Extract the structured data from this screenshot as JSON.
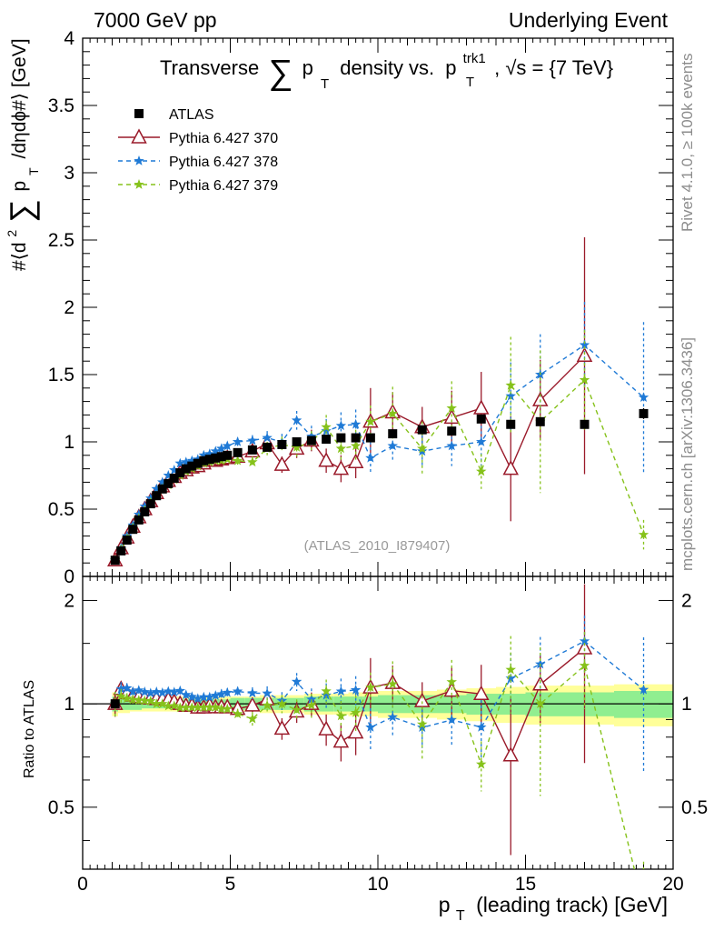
{
  "header": {
    "left": "7000 GeV pp",
    "right": "Underlying Event"
  },
  "side_labels": {
    "rivet": "Rivet 4.1.0, ≥ 100k events",
    "mcplots": "mcplots.cern.ch [arXiv:1306.3436]"
  },
  "title": {
    "text_a": "Transverse",
    "sum_symbol": "∑",
    "p": "p",
    "t_sub": "T",
    "text_b": "density vs.",
    "trk_sup": "trk1",
    "text_c": ", √s = {7 TeV}"
  },
  "ylabel_main": {
    "a": "#⟨d",
    "sup2": "2",
    "sum": "∑",
    "p": "p",
    "t": "T",
    "b": "/dηdϕ#⟩ [GeV]"
  },
  "ylabel_ratio": "Ratio to ATLAS",
  "xlabel": {
    "p": "p",
    "t": "T",
    "rest": "(leading track) [GeV]"
  },
  "watermark": "(ATLAS_2010_I879407)",
  "colors": {
    "atlas": "#000000",
    "p370": "#9a1a2a",
    "p378": "#1f7ad6",
    "p379": "#86c21b",
    "band_yellow": "#ffff99",
    "band_green": "#90ee90"
  },
  "chart_data": {
    "type": "scatter",
    "title": "Transverse ∑ p_T density vs. p_T^trk1, √s = {7 TeV}",
    "xlabel": "p_T (leading track) [GeV]",
    "ylabel": "#⟨d² ∑ p_T /dηdϕ#⟩ [GeV]",
    "xlim": [
      0,
      20
    ],
    "ylim": [
      0,
      4
    ],
    "ratio_ylim": [
      0.33,
      2.35
    ],
    "x_ticks": [
      "0",
      "5",
      "10",
      "15",
      "20"
    ],
    "y_ticks": [
      "0",
      "0.5",
      "1",
      "1.5",
      "2",
      "2.5",
      "3",
      "3.5",
      "4"
    ],
    "ratio_ticks": [
      "0.5",
      "1",
      "2"
    ],
    "legend_position": "top-left",
    "x": [
      1.1,
      1.3,
      1.5,
      1.7,
      1.9,
      2.1,
      2.3,
      2.5,
      2.7,
      2.9,
      3.1,
      3.3,
      3.5,
      3.7,
      3.9,
      4.1,
      4.3,
      4.5,
      4.7,
      4.9,
      5.25,
      5.75,
      6.25,
      6.75,
      7.25,
      7.75,
      8.25,
      8.75,
      9.25,
      9.75,
      10.5,
      11.5,
      12.5,
      13.5,
      14.5,
      15.5,
      17.0,
      19.0
    ],
    "bin_lo": [
      1.0,
      1.2,
      1.4,
      1.6,
      1.8,
      2.0,
      2.2,
      2.4,
      2.6,
      2.8,
      3.0,
      3.2,
      3.4,
      3.6,
      3.8,
      4.0,
      4.2,
      4.4,
      4.6,
      4.8,
      5.0,
      5.5,
      6.0,
      6.5,
      7.0,
      7.5,
      8.0,
      8.5,
      9.0,
      9.5,
      10.0,
      11.0,
      12.0,
      13.0,
      14.0,
      15.0,
      16.0,
      18.0
    ],
    "bin_hi": [
      1.2,
      1.4,
      1.6,
      1.8,
      2.0,
      2.2,
      2.4,
      2.6,
      2.8,
      3.0,
      3.2,
      3.4,
      3.6,
      3.8,
      4.0,
      4.2,
      4.4,
      4.6,
      4.8,
      5.0,
      5.5,
      6.0,
      6.5,
      7.0,
      7.5,
      8.0,
      8.5,
      9.0,
      9.5,
      10.0,
      11.0,
      12.0,
      13.0,
      14.0,
      15.0,
      16.0,
      18.0,
      20.0
    ],
    "band_green": [
      0.05,
      0.04,
      0.04,
      0.04,
      0.04,
      0.03,
      0.03,
      0.03,
      0.03,
      0.03,
      0.03,
      0.03,
      0.03,
      0.03,
      0.03,
      0.03,
      0.03,
      0.03,
      0.03,
      0.03,
      0.04,
      0.04,
      0.04,
      0.04,
      0.04,
      0.05,
      0.05,
      0.05,
      0.05,
      0.05,
      0.06,
      0.06,
      0.06,
      0.07,
      0.07,
      0.08,
      0.08,
      0.09
    ],
    "band_yellow": [
      0.08,
      0.06,
      0.06,
      0.05,
      0.05,
      0.05,
      0.05,
      0.05,
      0.05,
      0.05,
      0.05,
      0.05,
      0.05,
      0.05,
      0.05,
      0.05,
      0.05,
      0.05,
      0.05,
      0.05,
      0.05,
      0.05,
      0.06,
      0.06,
      0.06,
      0.07,
      0.07,
      0.07,
      0.08,
      0.08,
      0.09,
      0.09,
      0.1,
      0.11,
      0.12,
      0.13,
      0.13,
      0.14
    ],
    "series": [
      {
        "name": "ATLAS",
        "key": "atlas",
        "values": [
          0.12,
          0.19,
          0.27,
          0.35,
          0.42,
          0.48,
          0.54,
          0.6,
          0.65,
          0.69,
          0.73,
          0.77,
          0.8,
          0.82,
          0.84,
          0.86,
          0.87,
          0.88,
          0.89,
          0.9,
          0.92,
          0.94,
          0.96,
          0.98,
          1.0,
          1.01,
          1.02,
          1.03,
          1.03,
          1.03,
          1.06,
          1.09,
          1.08,
          1.17,
          1.13,
          1.15,
          1.13,
          1.21
        ],
        "errors": [
          0.01,
          0.01,
          0.01,
          0.01,
          0.01,
          0.01,
          0.01,
          0.01,
          0.01,
          0.01,
          0.01,
          0.01,
          0.01,
          0.01,
          0.01,
          0.01,
          0.01,
          0.01,
          0.01,
          0.01,
          0.01,
          0.01,
          0.01,
          0.01,
          0.01,
          0.01,
          0.02,
          0.02,
          0.02,
          0.02,
          0.02,
          0.02,
          0.02,
          0.03,
          0.03,
          0.03,
          0.03,
          0.04
        ]
      },
      {
        "name": "Pythia 6.427 370",
        "key": "p370",
        "values": [
          0.12,
          0.21,
          0.29,
          0.37,
          0.44,
          0.5,
          0.56,
          0.62,
          0.67,
          0.71,
          0.74,
          0.77,
          0.79,
          0.81,
          0.82,
          0.84,
          0.86,
          0.86,
          0.87,
          0.88,
          0.89,
          0.93,
          0.99,
          0.83,
          0.95,
          1.01,
          0.86,
          0.8,
          0.85,
          1.15,
          1.22,
          1.11,
          1.18,
          1.25,
          0.8,
          1.31,
          1.64,
          null
        ],
        "errors": [
          0.01,
          0.01,
          0.01,
          0.01,
          0.01,
          0.01,
          0.01,
          0.01,
          0.01,
          0.01,
          0.01,
          0.01,
          0.01,
          0.01,
          0.01,
          0.01,
          0.02,
          0.02,
          0.02,
          0.02,
          0.03,
          0.04,
          0.05,
          0.06,
          0.07,
          0.08,
          0.09,
          0.1,
          0.12,
          0.25,
          0.15,
          0.15,
          0.2,
          0.27,
          0.39,
          0.3,
          0.88,
          null
        ]
      },
      {
        "name": "Pythia 6.427 378",
        "key": "p378",
        "values": [
          0.12,
          0.21,
          0.3,
          0.38,
          0.46,
          0.52,
          0.58,
          0.65,
          0.7,
          0.75,
          0.79,
          0.84,
          0.85,
          0.86,
          0.87,
          0.9,
          0.91,
          0.93,
          0.95,
          0.97,
          1.0,
          1.01,
          1.03,
          1.0,
          1.16,
          1.04,
          1.08,
          1.12,
          1.13,
          0.88,
          0.97,
          0.93,
          0.97,
          1.0,
          1.34,
          1.5,
          1.72,
          1.33
        ],
        "errors": [
          0.01,
          0.01,
          0.01,
          0.01,
          0.01,
          0.01,
          0.01,
          0.01,
          0.01,
          0.01,
          0.01,
          0.02,
          0.02,
          0.02,
          0.02,
          0.02,
          0.02,
          0.02,
          0.03,
          0.03,
          0.03,
          0.04,
          0.05,
          0.06,
          0.07,
          0.08,
          0.09,
          0.1,
          0.11,
          0.12,
          0.12,
          0.12,
          0.15,
          0.2,
          0.25,
          0.3,
          0.32,
          0.56
        ]
      },
      {
        "name": "Pythia 6.427 379",
        "key": "p379",
        "values": [
          0.12,
          0.2,
          0.28,
          0.36,
          0.43,
          0.49,
          0.55,
          0.6,
          0.65,
          0.68,
          0.72,
          0.75,
          0.78,
          0.8,
          0.82,
          0.84,
          0.85,
          0.86,
          0.86,
          0.87,
          0.86,
          0.85,
          0.95,
          0.98,
          0.96,
          1.0,
          1.11,
          0.95,
          0.97,
          1.15,
          1.21,
          0.95,
          1.25,
          0.78,
          1.42,
          1.15,
          1.46,
          0.31
        ],
        "errors": [
          0.01,
          0.01,
          0.01,
          0.01,
          0.01,
          0.01,
          0.01,
          0.01,
          0.01,
          0.01,
          0.01,
          0.01,
          0.01,
          0.01,
          0.01,
          0.02,
          0.02,
          0.02,
          0.02,
          0.02,
          0.03,
          0.04,
          0.05,
          0.06,
          0.07,
          0.08,
          0.09,
          0.1,
          0.12,
          0.12,
          0.2,
          0.2,
          0.2,
          0.13,
          0.36,
          0.53,
          0.37,
          0.11
        ]
      }
    ]
  }
}
